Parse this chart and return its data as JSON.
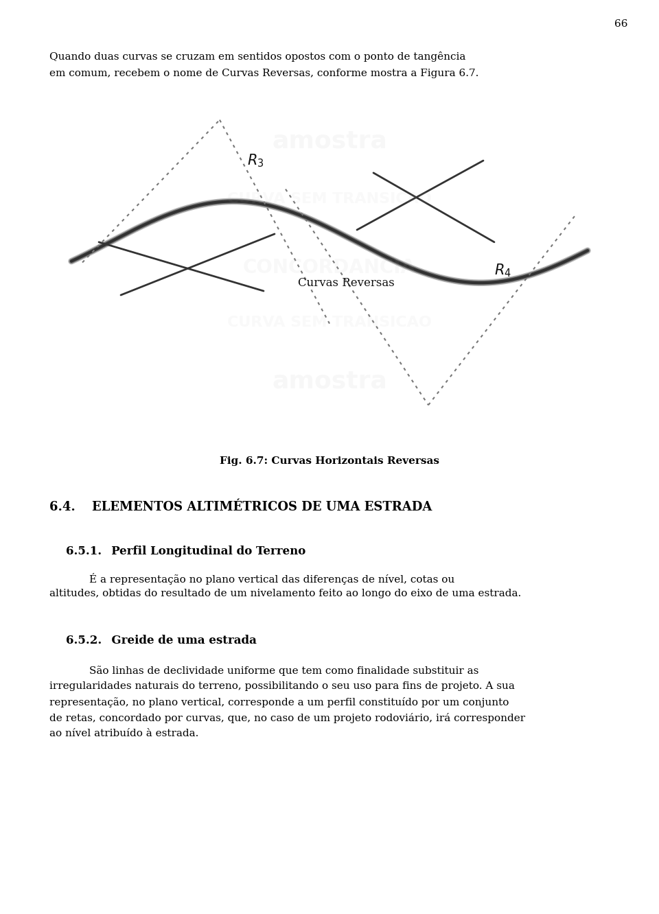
{
  "page_number": "66",
  "bg": "#ffffff",
  "fg": "#000000",
  "gray": "#555555",
  "dotted_color": "#777777",
  "intro_text_line1": "Quando duas curvas se cruzam em sentidos opostos com o ponto de tangência",
  "intro_text_line2": "em comum, recebem o nome de Curvas Reversas, conforme mostra a Figura 6.7.",
  "fig_caption": "Fig. 6.7: Curvas Horizontais Reversas",
  "sec64": "6.4.  ELEMENTOS ALTIMÉTRICOS DE UMA ESTRADA",
  "sec651": "6.5.1.  Perfil Longitudinal do Terreno",
  "sec651_body_line1": "É a representação no plano vertical das diferenças de nível, cotas ou",
  "sec651_body_line2": "altitudes, obtidas do resultado de um nivelamento feito ao longo do eixo de uma estrada.",
  "sec652": "6.5.2.  Greide de uma estrada",
  "sec652_body_line1": "São linhas de declividade uniforme que tem como finalidade substituir as",
  "sec652_body_line2": "irregularidades naturais do terreno, possibilitando o seu uso para fins de projeto. A sua",
  "sec652_body_line3": "representação, no plano vertical, corresponde a um perfil constituído por um conjunto",
  "sec652_body_line4": "de retas, concordado por curvas, que, no caso de um projeto rodoviário, irá corresponder",
  "sec652_body_line5": "ao nível atribuído à estrada.",
  "r3_label": "$R_3$",
  "r4_label": "$R_4$",
  "curvas_reversas_label": "Curvas Reversas"
}
